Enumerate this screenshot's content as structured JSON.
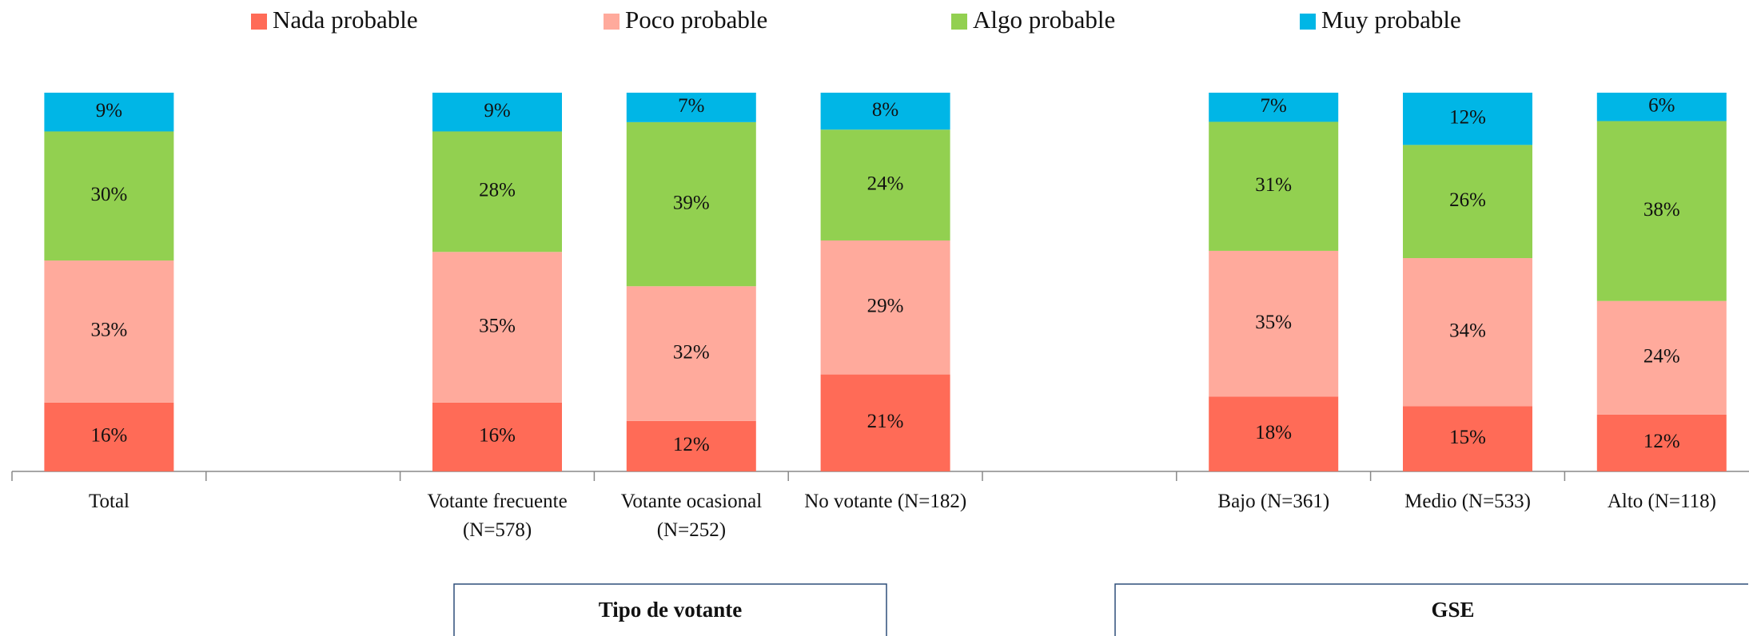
{
  "chart_data": {
    "type": "stacked_bar",
    "stack": "percent",
    "categories": [
      "Total",
      null,
      "Votante frecuente (N=578)",
      "Votante ocasional (N=252)",
      "No votante (N=182)",
      null,
      "Bajo (N=361)",
      "Medio (N=533)",
      "Alto (N=118)"
    ],
    "series": [
      {
        "name": "Nada probable",
        "color": "#ff6b57",
        "values": [
          16,
          null,
          16,
          12,
          21,
          null,
          18,
          15,
          12
        ],
        "value_labels": [
          "16%",
          null,
          "16%",
          "12%",
          "21%",
          null,
          "18%",
          "15%",
          "12%"
        ]
      },
      {
        "name": "Poco probable",
        "color": "#ffaa9c",
        "values": [
          33,
          null,
          35,
          32,
          29,
          null,
          35,
          34,
          24
        ],
        "value_labels": [
          "33%",
          null,
          "35%",
          "32%",
          "29%",
          null,
          "35%",
          "34%",
          "24%"
        ]
      },
      {
        "name": "Algo probable",
        "color": "#92d050",
        "values": [
          30,
          null,
          28,
          39,
          24,
          null,
          31,
          26,
          38
        ],
        "value_labels": [
          "30%",
          null,
          "28%",
          "39%",
          "24%",
          null,
          "31%",
          "26%",
          "38%"
        ]
      },
      {
        "name": "Muy probable",
        "color": "#00b6e6",
        "values": [
          9,
          null,
          9,
          7,
          8,
          null,
          7,
          12,
          6
        ],
        "value_labels": [
          "9%",
          null,
          "9%",
          "7%",
          "8%",
          null,
          "7%",
          "12%",
          "6%"
        ]
      }
    ],
    "legend": "top",
    "groups": [
      {
        "label": "Tipo de votante"
      },
      {
        "label": "GSE"
      }
    ]
  }
}
